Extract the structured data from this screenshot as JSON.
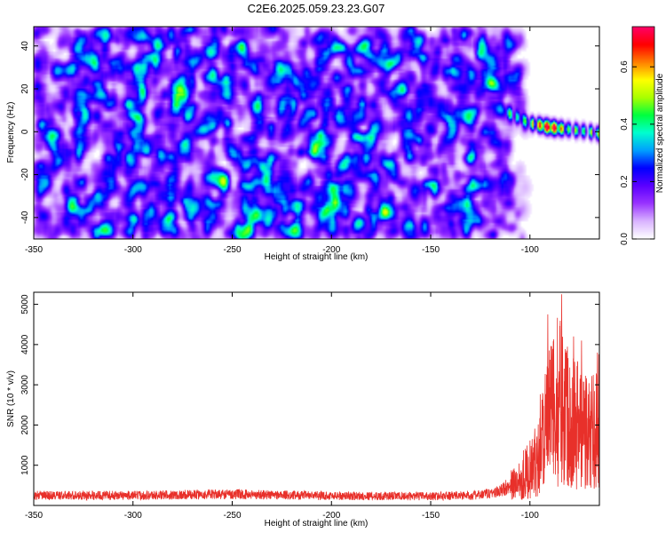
{
  "title": "C2E6.2025.059.23.23.G07",
  "chart_data": [
    {
      "type": "heatmap",
      "xlabel": "Height of straight line (km)",
      "ylabel": "Frequency (Hz)",
      "xlim": [
        -350,
        -65
      ],
      "ylim": [
        -50,
        49
      ],
      "x_ticks": [
        "-350",
        "-300",
        "-250",
        "-200",
        "-150",
        "-100"
      ],
      "y_ticks": [
        "40",
        "20",
        "0",
        "-20",
        "-40"
      ],
      "colorbar": {
        "label": "Normalized spectral amplitude",
        "range": [
          0,
          0.74
        ],
        "ticks": [
          "0.0",
          "0.2",
          "0.4",
          "0.6"
        ],
        "colormap": [
          "#ffffff",
          "#d9b3ff",
          "#9933ff",
          "#5b00ff",
          "#0000ff",
          "#00a0ff",
          "#00ffd0",
          "#00ff40",
          "#aaff00",
          "#ffff00",
          "#ff8000",
          "#ff0000",
          "#ff0066"
        ]
      },
      "noise": {
        "x_end": -112,
        "fade_end": -100,
        "level": 0.08
      },
      "signal_track": [
        {
          "x": -112,
          "y": 9
        },
        {
          "x": -100,
          "y": 4
        },
        {
          "x": -90,
          "y": 2
        },
        {
          "x": -80,
          "y": 1
        },
        {
          "x": -70,
          "y": 0
        },
        {
          "x": -65,
          "y": -1
        }
      ],
      "signal_peak": {
        "x": -90,
        "y": 2,
        "value": 0.7
      }
    },
    {
      "type": "line",
      "xlabel": "Height of straight line (km)",
      "ylabel": "SNR (10 * v/v)",
      "xlim": [
        -350,
        -65
      ],
      "ylim": [
        0,
        5300
      ],
      "x_ticks": [
        "-350",
        "-300",
        "-250",
        "-200",
        "-150",
        "-100"
      ],
      "y_ticks": [
        "1000",
        "2000",
        "3000",
        "4000",
        "5000"
      ],
      "color": "#e8302a",
      "envelope": [
        {
          "x": -350,
          "y": 250
        },
        {
          "x": -300,
          "y": 250
        },
        {
          "x": -250,
          "y": 280
        },
        {
          "x": -200,
          "y": 240
        },
        {
          "x": -150,
          "y": 230
        },
        {
          "x": -125,
          "y": 260
        },
        {
          "x": -115,
          "y": 350
        },
        {
          "x": -108,
          "y": 600
        },
        {
          "x": -103,
          "y": 900
        },
        {
          "x": -98,
          "y": 1100
        },
        {
          "x": -95,
          "y": 1800
        },
        {
          "x": -92,
          "y": 2400
        },
        {
          "x": -88,
          "y": 2700
        },
        {
          "x": -85,
          "y": 3100
        },
        {
          "x": -80,
          "y": 2600
        },
        {
          "x": -75,
          "y": 2300
        },
        {
          "x": -70,
          "y": 2000
        },
        {
          "x": -65,
          "y": 2500
        }
      ],
      "spikes": [
        {
          "x": -84,
          "y": 5250
        },
        {
          "x": -91,
          "y": 4750
        },
        {
          "x": -78,
          "y": 4200
        },
        {
          "x": -74,
          "y": 4100
        },
        {
          "x": -66,
          "y": 3800
        },
        {
          "x": -88,
          "y": 3900
        },
        {
          "x": -81,
          "y": 3600
        }
      ]
    }
  ]
}
